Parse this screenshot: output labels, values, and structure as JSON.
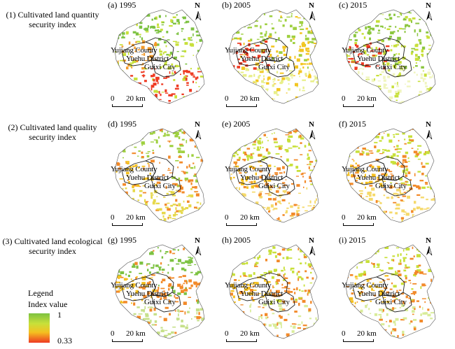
{
  "rows": [
    {
      "title_line1": "(1) Cultivated land quantity",
      "title_line2": "security index"
    },
    {
      "title_line1": "(2) Cultivated land quality",
      "title_line2": "security index"
    },
    {
      "title_line1": "(3) Cultivated land ecological",
      "title_line2": "security index"
    }
  ],
  "panels": [
    {
      "label": "(a)  1995",
      "row": 0,
      "year": "1995"
    },
    {
      "label": "(b)  2005",
      "row": 0,
      "year": "2005"
    },
    {
      "label": "(c)  2015",
      "row": 0,
      "year": "2015"
    },
    {
      "label": "(d)  1995",
      "row": 1,
      "year": "1995"
    },
    {
      "label": "(e)  2005",
      "row": 1,
      "year": "2005"
    },
    {
      "label": "(f)  2015",
      "row": 1,
      "year": "2015"
    },
    {
      "label": "(g)  1995",
      "row": 2,
      "year": "1995"
    },
    {
      "label": "(h)  2005",
      "row": 2,
      "year": "2005"
    },
    {
      "label": "(i)  2015",
      "row": 2,
      "year": "2015"
    }
  ],
  "places": {
    "county": "Yujiang County",
    "district": "Yuehu District",
    "city": "Guixi City"
  },
  "north_label": "N",
  "scale_bar": {
    "zero": "0",
    "distance": "20 km"
  },
  "legend": {
    "title": "Legend",
    "subtitle": "Index value",
    "max_label": "1",
    "min_label": "0.33",
    "colors": {
      "high": "#7dc242",
      "mid_high": "#c8e03a",
      "mid_low": "#f5c020",
      "low": "#ee3a22"
    }
  }
}
